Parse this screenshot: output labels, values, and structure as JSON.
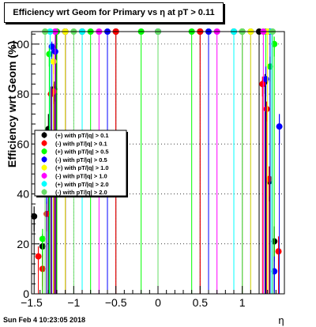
{
  "title": "Efficiency wrt Geom for Primary vs   η at pT > 0.11",
  "footer": "Sun Feb  4 10:23:05 2018",
  "chart_data": {
    "type": "scatter",
    "xlabel": "η",
    "ylabel": "Efficiency wrt Geom (%)",
    "xlim": [
      -1.5,
      1.5
    ],
    "ylim": [
      0,
      105
    ],
    "xticks": [
      -1.5,
      -1,
      -0.5,
      0,
      0.5,
      1
    ],
    "xtick_labels": [
      "−1.5",
      "−1",
      "−0.5",
      "0",
      "0.5",
      "1"
    ],
    "yticks": [
      0,
      20,
      40,
      60,
      80,
      100
    ],
    "ytick_labels": [
      "0",
      "20",
      "40",
      "60",
      "80",
      "100"
    ],
    "grid": true,
    "legend_position": "middle-left",
    "series": [
      {
        "name": "(+) with pT/|q| > 0.1",
        "color": "#000000",
        "points": [
          [
            -1.47,
            31,
            4
          ],
          [
            -1.37,
            19,
            5
          ],
          [
            -1.3,
            66,
            6
          ],
          [
            -1.23,
            82,
            3
          ],
          [
            -1.21,
            105,
            0
          ],
          [
            -1.1,
            105,
            0
          ],
          [
            -0.9,
            105,
            0
          ],
          [
            -0.5,
            105,
            0
          ],
          [
            0,
            105,
            0
          ],
          [
            0.5,
            105,
            0
          ],
          [
            0.9,
            105,
            0
          ],
          [
            1.2,
            105,
            0
          ],
          [
            1.27,
            85,
            3
          ],
          [
            1.32,
            45,
            6
          ],
          [
            1.38,
            21,
            6
          ]
        ]
      },
      {
        "name": "(-) with pT/|q| > 0.1",
        "color": "#ff0000",
        "points": [
          [
            -1.42,
            15,
            4
          ],
          [
            -1.37,
            10,
            5
          ],
          [
            -1.32,
            32,
            5
          ],
          [
            -1.27,
            80,
            3
          ],
          [
            -1.24,
            81,
            3
          ],
          [
            -1.1,
            105,
            0
          ],
          [
            -0.5,
            105,
            0
          ],
          [
            0,
            105,
            0
          ],
          [
            0.5,
            105,
            0
          ],
          [
            1.0,
            105,
            0
          ],
          [
            1.24,
            84,
            3
          ],
          [
            1.29,
            74,
            3
          ],
          [
            1.32,
            46,
            5
          ],
          [
            1.43,
            17,
            6
          ]
        ]
      },
      {
        "name": "(+) with pT/|q| > 0.5",
        "color": "#00ff00",
        "points": [
          [
            -1.37,
            22,
            4
          ],
          [
            -1.29,
            96,
            3
          ],
          [
            -1.2,
            105,
            0
          ],
          [
            -0.8,
            105,
            0
          ],
          [
            -0.2,
            105,
            0
          ],
          [
            0.4,
            105,
            0
          ],
          [
            1.0,
            105,
            0
          ],
          [
            1.28,
            105,
            0
          ],
          [
            1.33,
            91,
            4
          ],
          [
            1.38,
            100,
            3
          ]
        ]
      },
      {
        "name": "(-) with pT/|q| > 0.5",
        "color": "#0000ff",
        "points": [
          [
            -1.32,
            44,
            6
          ],
          [
            -1.26,
            99,
            2
          ],
          [
            -1.22,
            97,
            2
          ],
          [
            -1.1,
            105,
            0
          ],
          [
            -0.6,
            105,
            0
          ],
          [
            0,
            105,
            0
          ],
          [
            0.6,
            105,
            0
          ],
          [
            1.1,
            105,
            0
          ],
          [
            1.28,
            86,
            5
          ],
          [
            1.33,
            105,
            0
          ],
          [
            1.38,
            9,
            6
          ],
          [
            1.44,
            67,
            5
          ]
        ]
      },
      {
        "name": "(+) with pT/|q| > 1.0",
        "color": "#ffff00",
        "points": [
          [
            -1.24,
            93,
            3
          ],
          [
            -1.1,
            105,
            0
          ],
          [
            0,
            105,
            0
          ],
          [
            1.1,
            105,
            0
          ],
          [
            1.3,
            105,
            0
          ]
        ]
      },
      {
        "name": "(-) with pT/|q| > 1.0",
        "color": "#ff00ff",
        "points": [
          [
            -1.22,
            105,
            0
          ],
          [
            -0.7,
            105,
            0
          ],
          [
            0,
            105,
            0
          ],
          [
            0.7,
            105,
            0
          ],
          [
            1.25,
            105,
            0
          ]
        ]
      },
      {
        "name": "(+) with pT/|q| > 2.0",
        "color": "#00ffff",
        "points": [
          [
            -1.28,
            105,
            0
          ],
          [
            -0.9,
            105,
            0
          ],
          [
            0,
            105,
            0
          ],
          [
            0.9,
            105,
            0
          ],
          [
            1.35,
            105,
            0
          ]
        ]
      },
      {
        "name": "(-) with pT/|q| > 2.0",
        "color": "#66dd66",
        "points": [
          [
            -1.34,
            105,
            0
          ],
          [
            -1.0,
            105,
            0
          ],
          [
            0,
            105,
            0
          ],
          [
            1.0,
            105,
            0
          ],
          [
            1.36,
            105,
            0
          ]
        ]
      }
    ]
  }
}
